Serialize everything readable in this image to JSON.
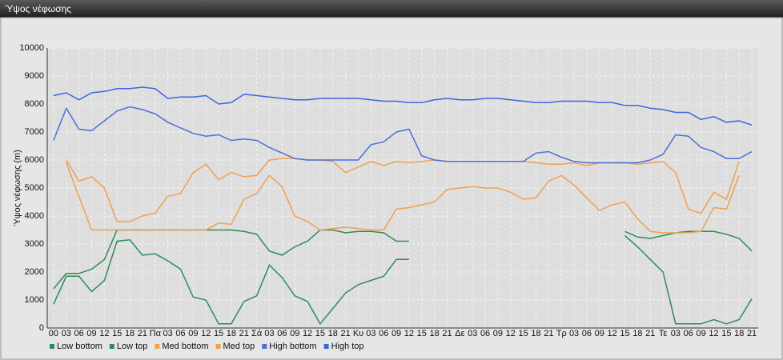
{
  "chart_data": {
    "type": "line",
    "title": "Ύψος νέφωσης",
    "ylabel": "Ύψος νέφωσης (m)",
    "categories": [
      "00",
      "03",
      "06",
      "09",
      "12",
      "15",
      "18",
      "21",
      "Πα",
      "03",
      "06",
      "09",
      "12",
      "15",
      "18",
      "21",
      "Σά",
      "03",
      "06",
      "09",
      "12",
      "15",
      "18",
      "21",
      "Κυ",
      "03",
      "06",
      "09",
      "12",
      "15",
      "18",
      "21",
      "Δε",
      "03",
      "06",
      "09",
      "12",
      "15",
      "18",
      "21",
      "Τρ",
      "03",
      "06",
      "09",
      "12",
      "15",
      "18",
      "21",
      "Τε",
      "03",
      "06",
      "09",
      "12",
      "15",
      "18",
      "21"
    ],
    "ylim": [
      0,
      10000
    ],
    "yticks": [
      0,
      1000,
      2000,
      3000,
      4000,
      5000,
      6000,
      7000,
      8000,
      9000,
      10000
    ],
    "grid": true,
    "legend": "bottom",
    "series": [
      {
        "name": "Low bottom",
        "color": "#2e8b57",
        "values": [
          850,
          1850,
          1850,
          1300,
          1700,
          3100,
          3150,
          2600,
          2650,
          2400,
          2100,
          1100,
          1000,
          150,
          150,
          950,
          1150,
          2250,
          1800,
          1150,
          950,
          150,
          700,
          1250,
          1550,
          1700,
          1850,
          2450,
          2450,
          null,
          null,
          null,
          null,
          null,
          null,
          null,
          null,
          null,
          null,
          null,
          null,
          null,
          null,
          null,
          null,
          3300,
          2900,
          2450,
          2000,
          150,
          150,
          150,
          300,
          150,
          300,
          1050
        ]
      },
      {
        "name": "Low top",
        "color": "#2e8b57",
        "values": [
          1400,
          1950,
          1950,
          2100,
          2450,
          3500,
          3500,
          3500,
          3500,
          3500,
          3500,
          3500,
          3500,
          3500,
          3500,
          3450,
          3350,
          2750,
          2600,
          2900,
          3100,
          3500,
          3500,
          3400,
          3450,
          3450,
          3400,
          3100,
          3100,
          null,
          null,
          null,
          null,
          null,
          null,
          null,
          null,
          null,
          null,
          null,
          null,
          null,
          null,
          null,
          null,
          3450,
          3250,
          3200,
          3300,
          3400,
          3450,
          3450,
          3450,
          3350,
          3200,
          2750
        ]
      },
      {
        "name": "Med bottom",
        "color": "#f0a050",
        "values": [
          null,
          5900,
          4700,
          3500,
          3500,
          3500,
          3500,
          3500,
          3500,
          3500,
          3500,
          3500,
          3500,
          3750,
          3700,
          4600,
          4800,
          5450,
          5050,
          4000,
          3800,
          3500,
          3550,
          3600,
          3550,
          3500,
          3500,
          4250,
          4300,
          4400,
          4500,
          4950,
          5000,
          5050,
          5000,
          5000,
          4850,
          4600,
          4650,
          5250,
          5450,
          5100,
          4650,
          4200,
          4400,
          4500,
          3900,
          3450,
          3400,
          3400,
          3400,
          3450,
          4300,
          4250,
          5450,
          null
        ]
      },
      {
        "name": "Med top",
        "color": "#f0a050",
        "values": [
          null,
          6000,
          5250,
          5400,
          5000,
          3800,
          3800,
          4000,
          4100,
          4700,
          4800,
          5550,
          5850,
          5300,
          5550,
          5400,
          5450,
          6000,
          6050,
          6050,
          6000,
          6000,
          5950,
          5550,
          5750,
          5950,
          5800,
          5950,
          5900,
          5950,
          6000,
          5950,
          5950,
          5950,
          5950,
          5950,
          5950,
          5950,
          5900,
          5850,
          5850,
          5900,
          5800,
          5900,
          5900,
          5900,
          5850,
          5900,
          5950,
          5550,
          4250,
          4100,
          4850,
          4600,
          5950,
          null
        ]
      },
      {
        "name": "High bottom",
        "color": "#4a6fd8",
        "values": [
          6700,
          7850,
          7100,
          7050,
          7400,
          7750,
          7900,
          7800,
          7650,
          7350,
          7150,
          6950,
          6850,
          6900,
          6700,
          6750,
          6700,
          6450,
          6250,
          6050,
          6000,
          6000,
          6000,
          6000,
          6000,
          6550,
          6650,
          7000,
          7100,
          6150,
          6000,
          5950,
          5950,
          5950,
          5950,
          5950,
          5950,
          5950,
          6250,
          6300,
          6100,
          5950,
          5900,
          5900,
          5900,
          5900,
          5900,
          6000,
          6200,
          6900,
          6850,
          6450,
          6300,
          6050,
          6050,
          6300
        ]
      },
      {
        "name": "High top",
        "color": "#3a66e0",
        "values": [
          8300,
          8400,
          8150,
          8400,
          8450,
          8550,
          8550,
          8600,
          8550,
          8200,
          8250,
          8250,
          8300,
          8000,
          8050,
          8350,
          8300,
          8250,
          8200,
          8150,
          8150,
          8200,
          8200,
          8200,
          8200,
          8150,
          8100,
          8100,
          8050,
          8050,
          8150,
          8200,
          8150,
          8150,
          8200,
          8200,
          8150,
          8100,
          8050,
          8050,
          8100,
          8100,
          8100,
          8050,
          8050,
          7950,
          7950,
          7850,
          7800,
          7700,
          7700,
          7450,
          7550,
          7350,
          7400,
          7250
        ]
      }
    ]
  }
}
